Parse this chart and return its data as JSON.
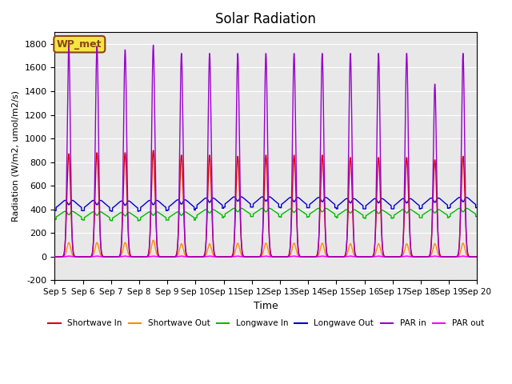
{
  "title": "Solar Radiation",
  "ylabel": "Radiation (W/m2, umol/m2/s)",
  "xlabel": "Time",
  "ylim": [
    -200,
    1900
  ],
  "yticks": [
    -200,
    0,
    200,
    400,
    600,
    800,
    1000,
    1200,
    1400,
    1600,
    1800
  ],
  "bg_color": "#e8e8e8",
  "annotation_text": "WP_met",
  "annotation_bg": "#f5e642",
  "annotation_border": "#8b4513",
  "lines": {
    "shortwave_in": {
      "color": "#dd0000",
      "label": "Shortwave In"
    },
    "shortwave_out": {
      "color": "#ff8c00",
      "label": "Shortwave Out"
    },
    "longwave_in": {
      "color": "#00bb00",
      "label": "Longwave In"
    },
    "longwave_out": {
      "color": "#0000cc",
      "label": "Longwave Out"
    },
    "par_in": {
      "color": "#9900cc",
      "label": "PAR in"
    },
    "par_out": {
      "color": "#ff00ff",
      "label": "PAR out"
    }
  },
  "x_tick_labels": [
    "Sep 5",
    "Sep 6",
    "Sep 7",
    "Sep 8",
    "Sep 9",
    "Sep 10",
    "Sep 11",
    "Sep 12",
    "Sep 13",
    "Sep 14",
    "Sep 15",
    "Sep 16",
    "Sep 17",
    "Sep 18",
    "Sep 19",
    "Sep 20"
  ],
  "par_peaks": [
    1780,
    1780,
    1750,
    1790,
    1720,
    1720,
    1720,
    1720,
    1720,
    1720,
    1720,
    1720,
    1720,
    1460,
    1720
  ],
  "sw_peaks": [
    870,
    880,
    880,
    900,
    860,
    860,
    850,
    860,
    860,
    860,
    840,
    840,
    840,
    820,
    850
  ],
  "swo_peaks": [
    120,
    120,
    120,
    140,
    110,
    110,
    115,
    115,
    115,
    115,
    110,
    110,
    110,
    110,
    115
  ],
  "lw_base": [
    315,
    310,
    305,
    310,
    310,
    330,
    340,
    340,
    335,
    340,
    330,
    325,
    330,
    330,
    340
  ],
  "lwo_base": [
    390,
    390,
    385,
    390,
    395,
    410,
    420,
    420,
    415,
    415,
    405,
    405,
    405,
    410,
    415
  ],
  "par_out_peaks": [
    5,
    5,
    5,
    5,
    5,
    5,
    5,
    5,
    5,
    5,
    5,
    5,
    5,
    5,
    5
  ]
}
